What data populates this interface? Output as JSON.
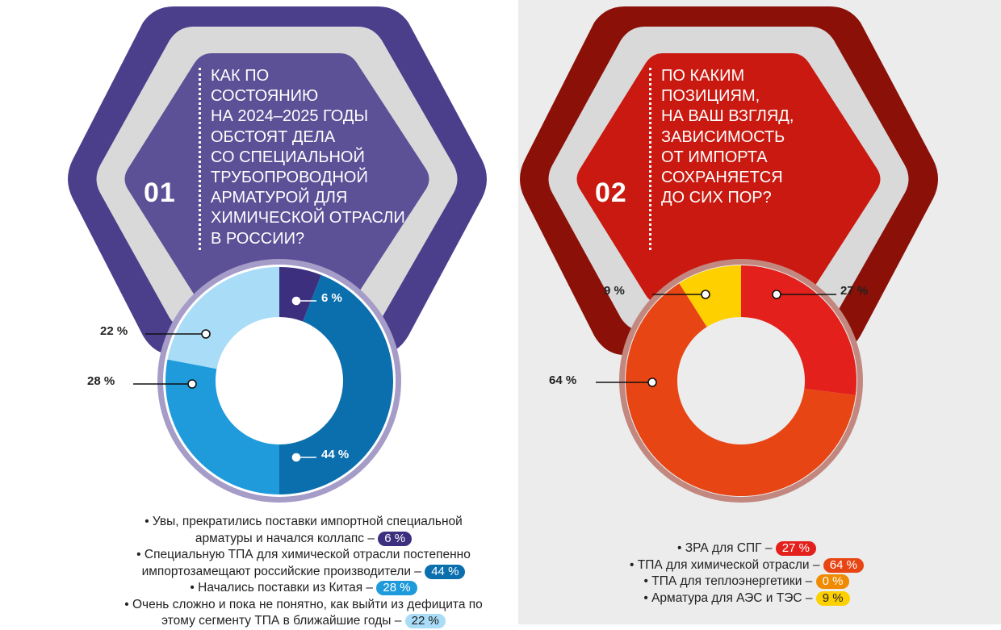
{
  "panels": [
    {
      "number": "01",
      "question": [
        "КАК ПО",
        "СОСТОЯНИЮ",
        "НА 2024–2025 ГОДЫ",
        "ОБСТОЯТ ДЕЛА",
        "СО СПЕЦИАЛЬНОЙ",
        "ТРУБОПРОВОДНОЙ",
        "АРМАТУРОЙ ДЛЯ",
        "ХИМИЧЕСКОЙ ОТРАСЛИ",
        "В РОССИИ?"
      ],
      "colors": {
        "outer": "#4b3f8c",
        "inner": "#6b5fa1",
        "ring": "#d9d9d9"
      }
    },
    {
      "number": "02",
      "question": [
        "ПО КАКИМ",
        "ПОЗИЦИЯМ,",
        "НА ВАШ ВЗГЛЯД,",
        "ЗАВИСИМОСТЬ",
        "ОТ ИМПОРТА",
        "СОХРАНЯЕТСЯ",
        "ДО СИХ ПОР?"
      ],
      "colors": {
        "outer": "#8a1008",
        "inner": "#d41c12",
        "ring": "#d9d9d9"
      }
    }
  ],
  "chart_data": [
    {
      "type": "pie",
      "variant": "donut",
      "title": "КАК ПО СОСТОЯНИЮ НА 2024–2025 ГОДЫ ОБСТОЯТ ДЕЛА СО СПЕЦИАЛЬНОЙ ТРУБОПРОВОДНОЙ АРМАТУРОЙ ДЛЯ ХИМИЧЕСКОЙ ОТРАСЛИ В РОССИИ?",
      "slices": [
        {
          "legend": [
            "• Увы, прекратились поставки импортной специальной",
            "арматуры и начался коллапс – "
          ],
          "value": 6,
          "label": "6 %",
          "color": "#3b2f7e",
          "pill_text": "#ffffff"
        },
        {
          "legend": [
            "• Специальную ТПА для химической отрасли постепенно",
            "импортозамещают российские производители – "
          ],
          "value": 44,
          "label": "44 %",
          "color": "#0b6fae",
          "pill_text": "#ffffff"
        },
        {
          "legend": [
            "• Начались поставки из Китая – "
          ],
          "value": 28,
          "label": "28 %",
          "color": "#1f9bdc",
          "pill_text": "#ffffff"
        },
        {
          "legend": [
            "• Очень сложно и пока не понятно, как выйти из дефицита по",
            "этому сегменту ТПА в ближайшие годы – "
          ],
          "value": 22,
          "label": "22 %",
          "color": "#a8dcf7",
          "pill_text": "#222222"
        }
      ]
    },
    {
      "type": "pie",
      "variant": "donut",
      "title": "ПО КАКИМ ПОЗИЦИЯМ, НА ВАШ ВЗГЛЯД, ЗАВИСИМОСТЬ ОТ ИМПОРТА СОХРАНЯЕТСЯ ДО СИХ ПОР?",
      "slices": [
        {
          "legend": [
            "• ЗРА для СПГ – "
          ],
          "value": 27,
          "label": "27 %",
          "color": "#e3201b",
          "pill_text": "#ffffff"
        },
        {
          "legend": [
            "• ТПА для химической отрасли – "
          ],
          "value": 64,
          "label": "64 %",
          "color": "#e84514",
          "pill_text": "#ffffff"
        },
        {
          "legend": [
            "• ТПА для теплоэнергетики – "
          ],
          "value": 0,
          "label": "0 %",
          "color": "#f08a00",
          "pill_text": "#ffffff"
        },
        {
          "legend": [
            "• Арматура для АЭС и ТЭС – "
          ],
          "value": 9,
          "label": "9 %",
          "color": "#ffd000",
          "pill_text": "#222222"
        }
      ]
    }
  ]
}
